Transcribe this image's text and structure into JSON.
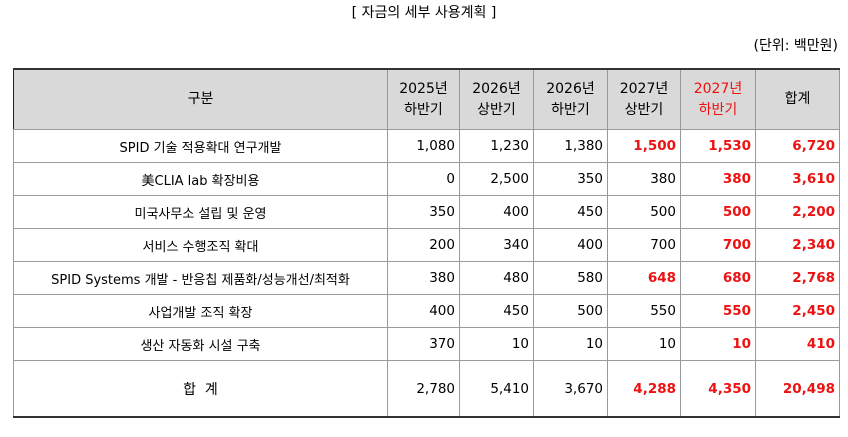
{
  "title": "[ 자금의 세부 사용계획 ]",
  "unit": "(단위: 백만원)",
  "headers": {
    "category": "구분",
    "periods": [
      {
        "year": "2025년",
        "half": "하반기"
      },
      {
        "year": "2026년",
        "half": "상반기"
      },
      {
        "year": "2026년",
        "half": "하반기"
      },
      {
        "year": "2027년",
        "half": "상반기"
      },
      {
        "year": "2027년",
        "half": "하반기"
      }
    ],
    "total": "합계"
  },
  "rows": [
    {
      "category": "SPID 기술 적용확대 연구개발",
      "values": [
        "1,080",
        "1,230",
        "1,380",
        "1,500",
        "1,530"
      ],
      "total": "6,720"
    },
    {
      "category": "美CLIA lab 확장비용",
      "values": [
        "0",
        "2,500",
        "350",
        "380",
        "380"
      ],
      "total": "3,610"
    },
    {
      "category": "미국사무소 설립 및 운영",
      "values": [
        "350",
        "400",
        "450",
        "500",
        "500"
      ],
      "total": "2,200"
    },
    {
      "category": "서비스 수행조직 확대",
      "values": [
        "200",
        "340",
        "400",
        "700",
        "700"
      ],
      "total": "2,340"
    },
    {
      "category": "SPID Systems 개발 - 반응칩 제품화/성능개선/최적화",
      "values": [
        "380",
        "480",
        "580",
        "648",
        "680"
      ],
      "total": "2,768"
    },
    {
      "category": "사업개발 조직 확장",
      "values": [
        "400",
        "450",
        "500",
        "550",
        "550"
      ],
      "total": "2,450"
    },
    {
      "category": "생산 자동화 시설 구축",
      "values": [
        "370",
        "10",
        "10",
        "10",
        "10"
      ],
      "total": "410"
    }
  ],
  "grand_total": {
    "category": "합  계",
    "values": [
      "2,780",
      "5,410",
      "3,670",
      "4,288",
      "4,350"
    ],
    "total": "20,498"
  },
  "colors": {
    "highlight": "#ee1111",
    "header_bg": "#d9d9d9"
  }
}
